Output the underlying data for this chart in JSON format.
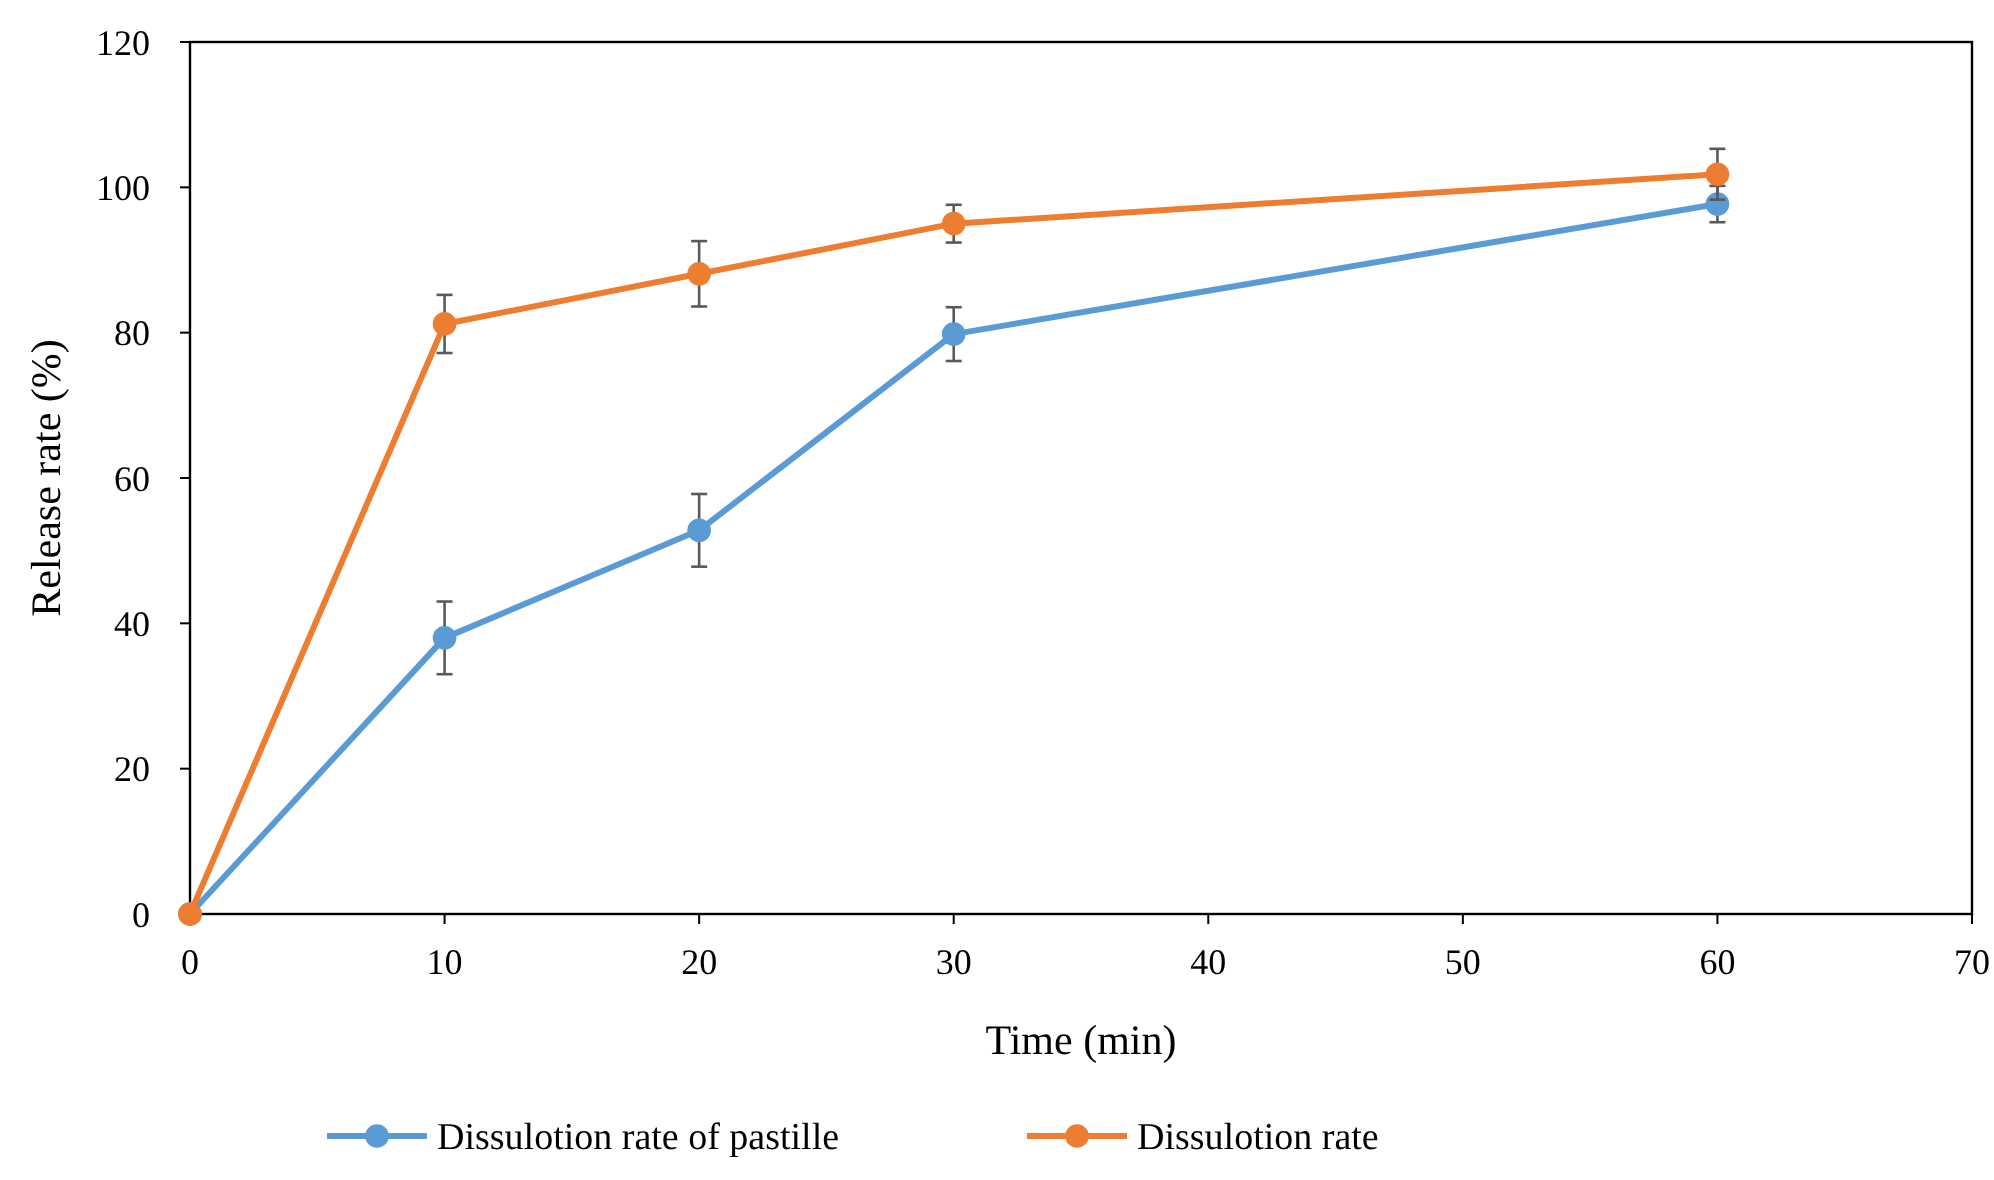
{
  "chart_data": {
    "type": "line",
    "xlabel": "Time (min)",
    "ylabel": "Release rate (%)",
    "x": [
      0,
      10,
      20,
      30,
      60
    ],
    "series": [
      {
        "name": "Dissulotion rate of pastille",
        "color": "#5b9bd5",
        "values": [
          0,
          38,
          52.8,
          79.8,
          97.7
        ],
        "errors": [
          null,
          5,
          5,
          3.7,
          2.5
        ]
      },
      {
        "name": "Dissulotion rate",
        "color": "#ed7d31",
        "values": [
          0,
          81.2,
          88.1,
          95,
          101.8
        ],
        "errors": [
          null,
          4,
          4.5,
          2.6,
          3.5
        ]
      }
    ],
    "xlim": [
      0,
      70
    ],
    "xticks": [
      0,
      10,
      20,
      30,
      40,
      50,
      60,
      70
    ],
    "ylim": [
      0,
      120
    ],
    "yticks": [
      0,
      20,
      40,
      60,
      80,
      100,
      120
    ],
    "grid": false,
    "legend": "bottom",
    "marker": "circle",
    "line_style": "solid"
  }
}
